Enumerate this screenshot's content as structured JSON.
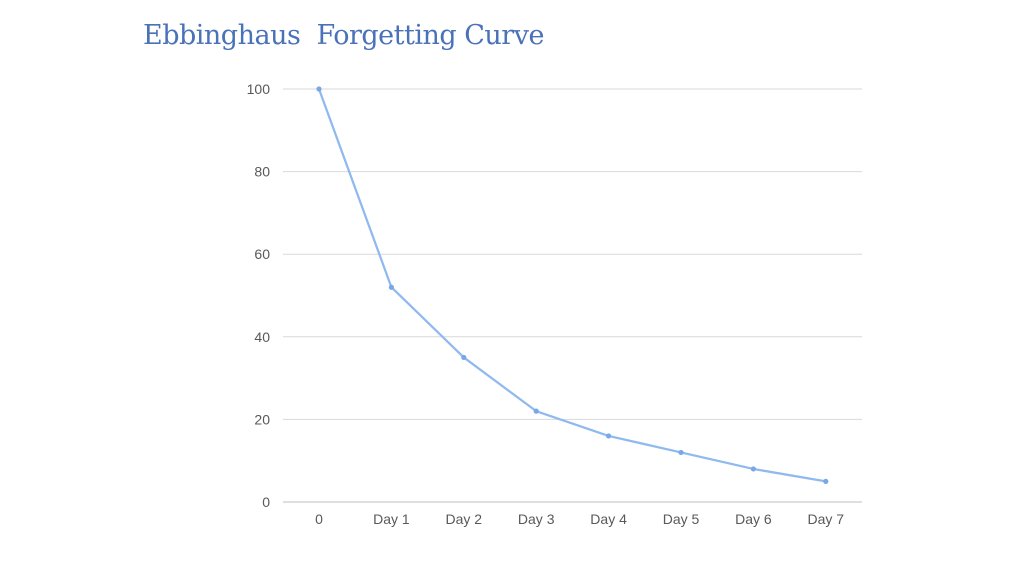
{
  "chart_data": {
    "type": "line",
    "title": "Ebbinghaus  Forgetting Curve",
    "xlabel": "",
    "ylabel": "",
    "categories": [
      "0",
      "Day 1",
      "Day 2",
      "Day 3",
      "Day 4",
      "Day 5",
      "Day 6",
      "Day 7"
    ],
    "series": [
      {
        "values": [
          100,
          52,
          35,
          22,
          16,
          12,
          8,
          5
        ]
      }
    ],
    "ylim": [
      0,
      100
    ],
    "yticks": [
      0,
      20,
      40,
      60,
      80,
      100
    ],
    "grid": true,
    "legend": "none",
    "colors": {
      "line": "#8fb9ef",
      "marker": "#7aa8e6",
      "grid": "#d9d9d9",
      "axis": "#bfbfbf",
      "title": "#4a72b8"
    }
  }
}
